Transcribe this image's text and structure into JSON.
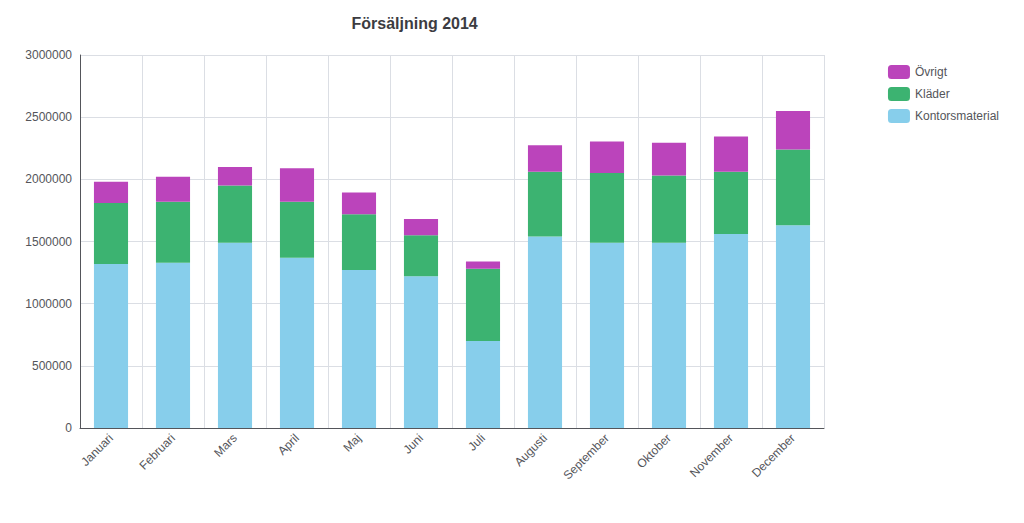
{
  "chart_data": {
    "type": "bar",
    "title": "Försäljning 2014",
    "categories": [
      "Januari",
      "Februari",
      "Mars",
      "April",
      "Maj",
      "Juni",
      "Juli",
      "Augusti",
      "September",
      "Oktober",
      "November",
      "December"
    ],
    "series": [
      {
        "name": "Kontorsmaterial",
        "color": "#87CEEB",
        "values": [
          1320000,
          1330000,
          1490000,
          1370000,
          1270000,
          1220000,
          700000,
          1540000,
          1490000,
          1490000,
          1560000,
          1630000
        ]
      },
      {
        "name": "Kläder",
        "color": "#3CB371",
        "values": [
          490000,
          490000,
          460000,
          450000,
          450000,
          330000,
          580000,
          520000,
          560000,
          540000,
          500000,
          610000
        ]
      },
      {
        "name": "Övrigt",
        "color": "#BB44BB",
        "values": [
          170000,
          200000,
          150000,
          270000,
          175000,
          130000,
          60000,
          215000,
          255000,
          265000,
          285000,
          310000
        ]
      }
    ],
    "stacked": true,
    "ylim": [
      0,
      3000000
    ],
    "yticks": [
      0,
      500000,
      1000000,
      1500000,
      2000000,
      2500000,
      3000000
    ],
    "grid": true,
    "legend": "upper right"
  }
}
